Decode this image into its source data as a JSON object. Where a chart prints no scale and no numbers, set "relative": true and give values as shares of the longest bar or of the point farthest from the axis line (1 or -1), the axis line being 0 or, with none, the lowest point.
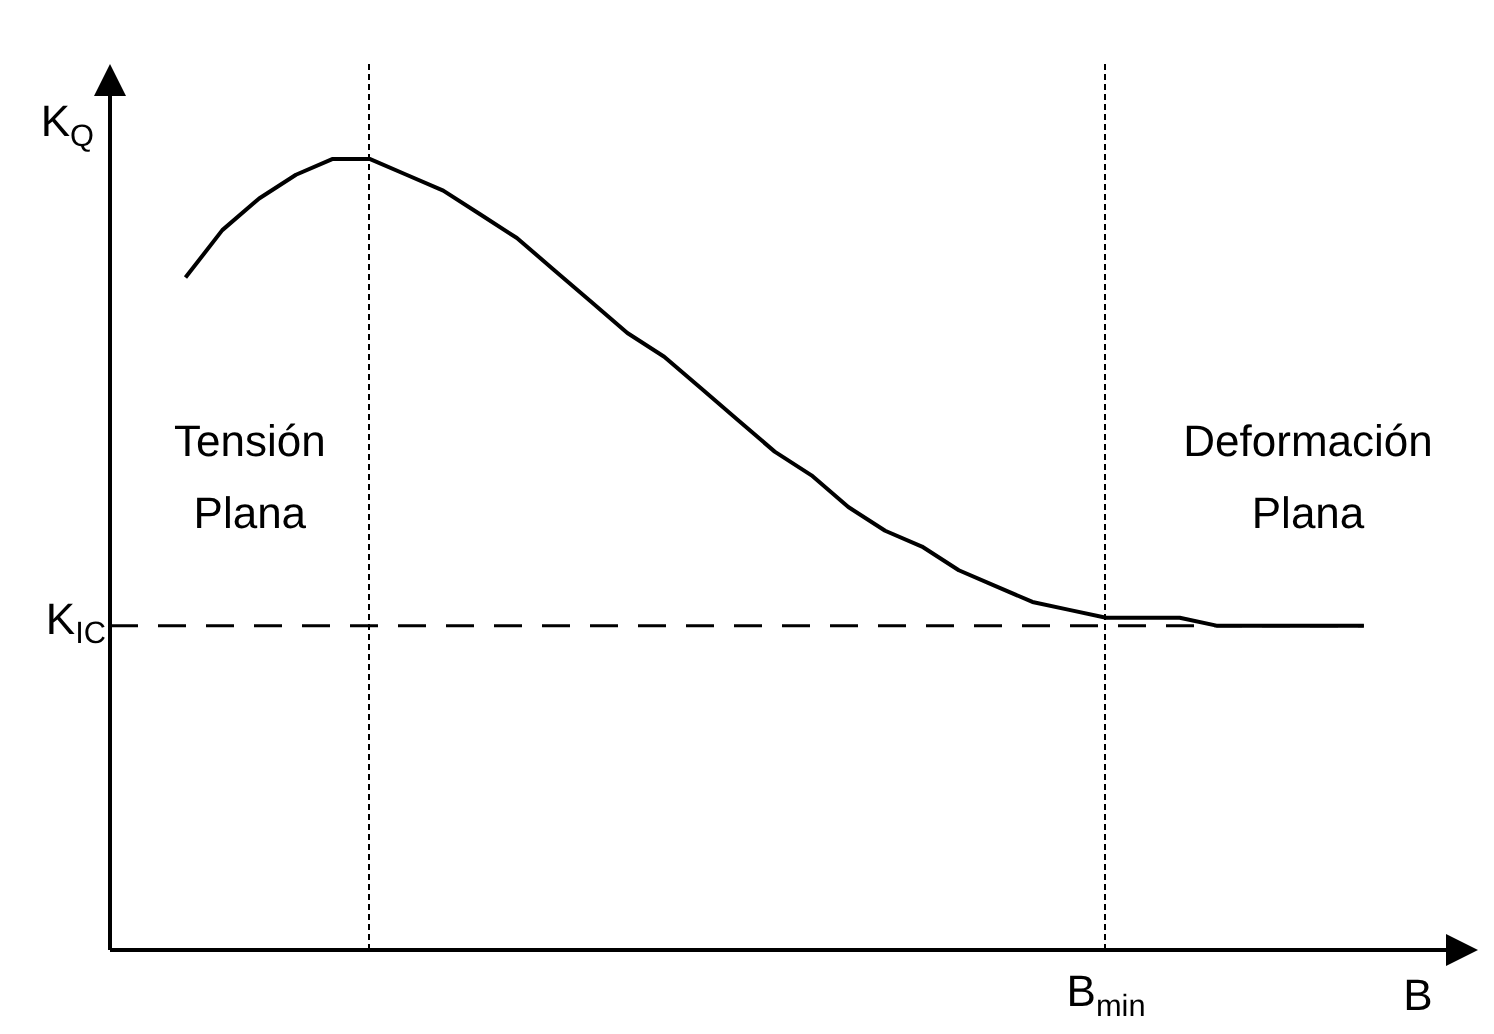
{
  "chart_data": {
    "type": "line",
    "relative": true,
    "xlabel": "B",
    "ylabel": "K$_{Q}$",
    "categories": [
      null,
      null,
      null,
      null,
      null,
      null,
      null,
      null,
      null,
      null,
      null,
      null,
      null,
      null,
      null,
      null,
      null,
      null,
      null,
      null,
      null,
      null,
      null,
      null,
      null,
      null,
      null,
      null,
      null,
      null,
      null,
      null,
      null
    ],
    "series": [
      {
        "color": "#000000",
        "values": [
          0.85,
          0.91,
          0.95,
          0.98,
          1.0,
          1.0,
          0.98,
          0.96,
          0.93,
          0.9,
          0.86,
          0.82,
          0.78,
          0.75,
          0.71,
          0.67,
          0.63,
          0.6,
          0.56,
          0.53,
          0.51,
          0.48,
          0.46,
          0.44,
          0.43,
          0.42,
          0.42,
          0.42,
          0.41,
          0.41,
          0.41,
          0.41,
          0.41
        ]
      }
    ],
    "ref_lines": [
      {
        "axis": "y",
        "value": 0.41,
        "label": "K$_{IC}$",
        "color": "#000000",
        "line_style": "dashed"
      }
    ],
    "annotations": [
      "Tensión Plana",
      "Deformación Plana",
      "B$_{min}$"
    ],
    "legend": false,
    "marker": "none",
    "line_style": "solid",
    "tick_labels": false
  }
}
